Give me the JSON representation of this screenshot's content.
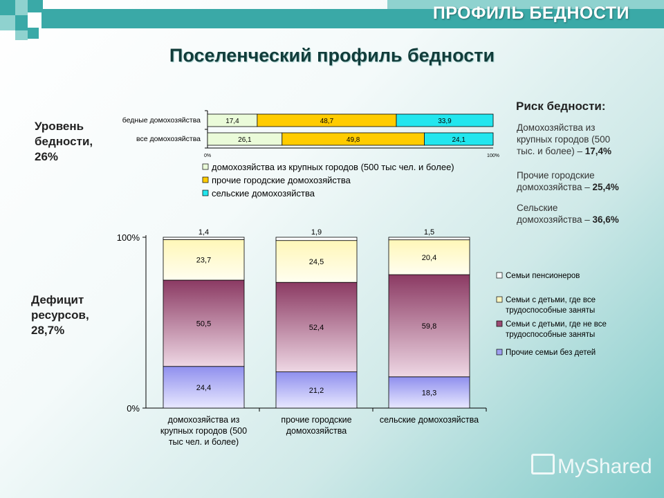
{
  "header": {
    "title": "ПРОФИЛЬ БЕДНОСТИ"
  },
  "main_title": "Поселенческий профиль бедности",
  "left_labels": {
    "poverty_level": [
      "Уровень",
      "бедности,",
      "26%"
    ],
    "resource_deficit": [
      "Дефицит",
      "ресурсов,",
      "28,7%"
    ]
  },
  "risk": {
    "title": "Риск бедности:",
    "items": [
      {
        "text_lines": [
          "Домохозяйства из",
          "крупных городов (500",
          "тыс. и более) – "
        ],
        "value": "17,4%"
      },
      {
        "text_lines": [
          "Прочие городские",
          "домохозяйства – "
        ],
        "value": "25,4%"
      },
      {
        "text_lines": [
          "Сельские",
          "домохозяйства – "
        ],
        "value": "36,6%"
      }
    ]
  },
  "colors": {
    "brand": "#3aa9a7",
    "bar1": [
      "#eafbd9",
      "#ffcc00",
      "#22e6ee"
    ],
    "bar2": [
      "#fffde0",
      "#8b3a63",
      "#8f8fee"
    ]
  },
  "watermark": "MyShared",
  "chart_data": [
    {
      "type": "bar",
      "orientation": "horizontal",
      "stacked": true,
      "categories": [
        "бедные домохозяйства",
        "все домохозяйства"
      ],
      "series": [
        {
          "name": "домохозяйства из крупных городов (500 тыс чел. и более)",
          "values": [
            17.4,
            26.1
          ],
          "labels": [
            "17,4",
            "26,1"
          ]
        },
        {
          "name": "прочие городские домохозяйства",
          "values": [
            48.7,
            49.8
          ],
          "labels": [
            "48,7",
            "49,8"
          ]
        },
        {
          "name": "сельские домохозяйства",
          "values": [
            33.9,
            24.1
          ],
          "labels": [
            "33,9",
            "24,1"
          ]
        }
      ],
      "xlim": [
        0,
        100
      ],
      "xticks": [
        "0%",
        "100%"
      ],
      "legend": "bottom"
    },
    {
      "type": "bar",
      "orientation": "vertical",
      "stacked": true,
      "categories": [
        [
          "домохозяйства из",
          "крупных городов (500",
          "тыс чел. и более)"
        ],
        [
          "прочие городские",
          "домохозяйства"
        ],
        [
          "сельские домохозяйства"
        ]
      ],
      "series": [
        {
          "name": "Прочие семьи без детей",
          "values": [
            24.4,
            21.2,
            18.3
          ],
          "labels": [
            "24,4",
            "21,2",
            "18,3"
          ]
        },
        {
          "name": "Семьи с детьми, где не все трудоспособные заняты",
          "values": [
            50.5,
            52.4,
            59.8
          ],
          "labels": [
            "50,5",
            "52,4",
            "59,8"
          ]
        },
        {
          "name": "Семьи с детьми, где все трудоспособные заняты",
          "values": [
            23.7,
            24.5,
            20.4
          ],
          "labels": [
            "23,7",
            "24,5",
            "20,4"
          ]
        },
        {
          "name": "Семьи пенсионеров",
          "values": [
            1.4,
            1.9,
            1.5
          ],
          "labels": [
            "1,4",
            "1,9",
            "1,5"
          ]
        }
      ],
      "ylim": [
        0,
        100
      ],
      "yticks": [
        "0%",
        "100%"
      ],
      "legend": "right"
    }
  ]
}
